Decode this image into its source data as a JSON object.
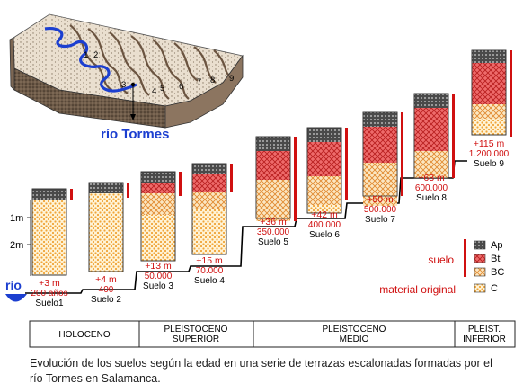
{
  "block_diagram": {
    "terrace_numbers": [
      "1",
      "2",
      "3",
      "4",
      "5",
      "6",
      "7",
      "8",
      "9"
    ],
    "river_label": "río Tormes"
  },
  "axis": {
    "tick_1m": "1m",
    "tick_2m": "2m"
  },
  "river_label_small": "río",
  "soils": [
    {
      "height": "+3 m",
      "age": "200 años",
      "name": "Suelo1"
    },
    {
      "height": "+4 m",
      "age": "400",
      "name": "Suelo 2"
    },
    {
      "height": "+13 m",
      "age": "50.000",
      "name": "Suelo 3"
    },
    {
      "height": "+15 m",
      "age": "70.000",
      "name": "Suelo 4"
    },
    {
      "height": "+36 m",
      "age": "350.000",
      "name": "Suelo 5"
    },
    {
      "height": "+42 m",
      "age": "400.000",
      "name": "Suelo 6"
    },
    {
      "height": "+50 m",
      "age": "500.000",
      "name": "Suelo 7"
    },
    {
      "height": "+63 m",
      "age": "600.000",
      "name": "Suelo 8"
    },
    {
      "height": "+115 m",
      "age": "1.200.000",
      "name": "Suelo 9"
    }
  ],
  "legend": {
    "suelo": "suelo",
    "material": "material original",
    "horizons": [
      "Ap",
      "Bt",
      "BC",
      "C"
    ]
  },
  "periods": [
    "HOLOCENO",
    "PLEISTOCENO SUPERIOR",
    "PLEISTOCENO MEDIO",
    "PLEIST. INFERIOR"
  ],
  "caption": "Evolución de los suelos según la edad en una serie de terrazas escalonadas formadas por el río Tormes en Salamanca.",
  "colors": {
    "red_text": "#d01010",
    "river_blue": "#1040c0",
    "ap_dark": "#555555",
    "bt_red": "#e06060",
    "bc_orange": "#f0b060",
    "c_yellow": "#f5d060"
  }
}
